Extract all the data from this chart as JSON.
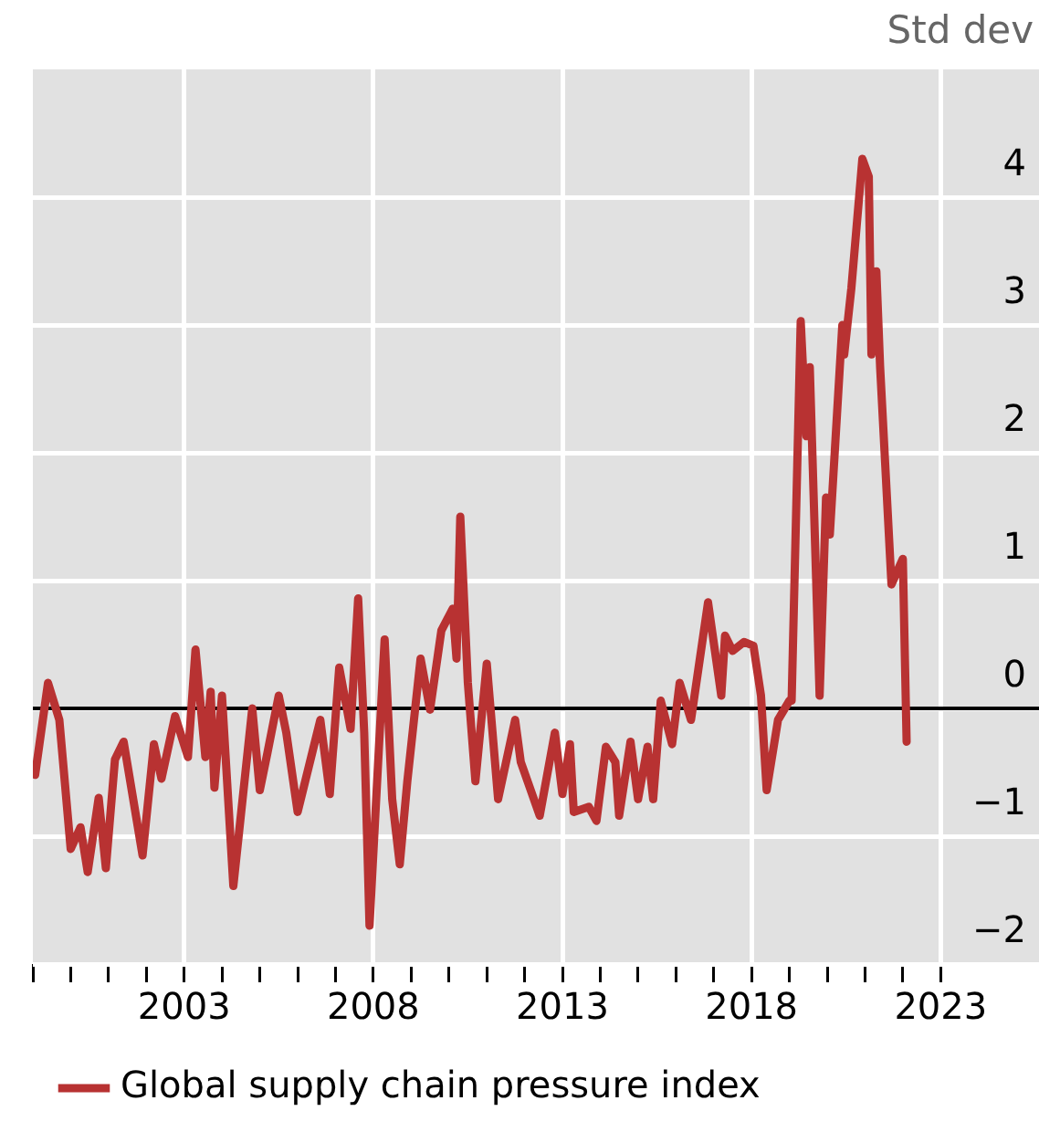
{
  "chart_data": {
    "type": "line",
    "ylabel": "Std dev",
    "x": [
      1999.06,
      1999.4,
      1999.7,
      2000.0,
      2000.26,
      2000.45,
      2000.74,
      2000.93,
      2001.17,
      2001.4,
      2001.9,
      2002.2,
      2002.4,
      2002.76,
      2003.1,
      2003.3,
      2003.56,
      2003.7,
      2003.8,
      2004.0,
      2004.3,
      2004.8,
      2005.0,
      2005.2,
      2005.5,
      2005.7,
      2006.0,
      2006.4,
      2006.6,
      2006.85,
      2007.1,
      2007.4,
      2007.6,
      2007.76,
      2007.9,
      2008.3,
      2008.5,
      2008.7,
      2008.9,
      2009.25,
      2009.5,
      2009.8,
      2010.1,
      2010.2,
      2010.3,
      2010.5,
      2010.7,
      2011.0,
      2011.3,
      2011.75,
      2011.9,
      2012.4,
      2012.8,
      2013.0,
      2013.2,
      2013.3,
      2013.7,
      2013.9,
      2014.15,
      2014.4,
      2014.5,
      2014.8,
      2015.0,
      2015.25,
      2015.4,
      2015.6,
      2015.9,
      2016.1,
      2016.4,
      2016.85,
      2017.2,
      2017.3,
      2017.5,
      2017.8,
      2018.05,
      2018.25,
      2018.4,
      2018.7,
      2019.0,
      2019.06,
      2019.3,
      2019.45,
      2019.54,
      2019.8,
      2019.97,
      2020.07,
      2020.4,
      2020.45,
      2020.64,
      2020.93,
      2021.1,
      2021.17,
      2021.3,
      2021.4,
      2021.7,
      2022.0,
      2022.1
    ],
    "series": [
      {
        "name": "Global supply chain pressure index",
        "color": "#b83232",
        "values": [
          -0.52,
          0.2,
          -0.09,
          -1.1,
          -0.93,
          -1.28,
          -0.7,
          -1.25,
          -0.4,
          -0.26,
          -1.15,
          -0.28,
          -0.55,
          -0.06,
          -0.38,
          0.46,
          -0.38,
          0.13,
          -0.62,
          0.1,
          -1.39,
          0.0,
          -0.64,
          -0.35,
          0.1,
          -0.19,
          -0.81,
          -0.33,
          -0.09,
          -0.67,
          0.32,
          -0.16,
          0.86,
          -0.19,
          -1.7,
          0.54,
          -0.71,
          -1.22,
          -0.57,
          0.39,
          -0.01,
          0.61,
          0.78,
          0.39,
          1.5,
          0.2,
          -0.57,
          0.35,
          -0.71,
          -0.09,
          -0.42,
          -0.84,
          -0.19,
          -0.67,
          -0.28,
          -0.81,
          -0.77,
          -0.88,
          -0.3,
          -0.42,
          -0.84,
          -0.26,
          -0.71,
          -0.3,
          -0.71,
          0.06,
          -0.28,
          0.2,
          -0.09,
          0.83,
          0.1,
          0.57,
          0.45,
          0.52,
          0.49,
          0.1,
          -0.64,
          -0.09,
          0.06,
          0.06,
          3.03,
          2.13,
          2.67,
          0.1,
          1.65,
          1.36,
          3.0,
          2.77,
          3.29,
          4.3,
          4.16,
          2.77,
          3.42,
          2.67,
          0.97,
          1.17,
          -0.26
        ]
      }
    ],
    "xlim": [
      1999,
      2025.6
    ],
    "xticks": [
      {
        "value": 1999,
        "label": null
      },
      {
        "value": 2000,
        "label": null
      },
      {
        "value": 2001,
        "label": null
      },
      {
        "value": 2002,
        "label": null
      },
      2003,
      {
        "value": 2004,
        "label": null
      },
      {
        "value": 2005,
        "label": null
      },
      {
        "value": 2006,
        "label": null
      },
      {
        "value": 2007,
        "label": null
      },
      2008,
      {
        "value": 2009,
        "label": null
      },
      {
        "value": 2010,
        "label": null
      },
      {
        "value": 2011,
        "label": null
      },
      {
        "value": 2012,
        "label": null
      },
      2013,
      {
        "value": 2014,
        "label": null
      },
      {
        "value": 2015,
        "label": null
      },
      {
        "value": 2016,
        "label": null
      },
      {
        "value": 2017,
        "label": null
      },
      2018,
      {
        "value": 2019,
        "label": null
      },
      {
        "value": 2020,
        "label": null
      },
      {
        "value": 2021,
        "label": null
      },
      {
        "value": 2022,
        "label": null
      },
      2023
    ],
    "ylim": [
      -2,
      5
    ],
    "yticks": [
      {
        "value": -2,
        "label": "−2"
      },
      {
        "value": -1,
        "label": "−1"
      },
      0,
      1,
      2,
      3,
      4
    ],
    "ref_lines": [
      {
        "axis": "y",
        "value": 0,
        "color": "#000000"
      }
    ],
    "grid": true,
    "legend": "bottom",
    "marker": "none",
    "line_style": "solid"
  }
}
